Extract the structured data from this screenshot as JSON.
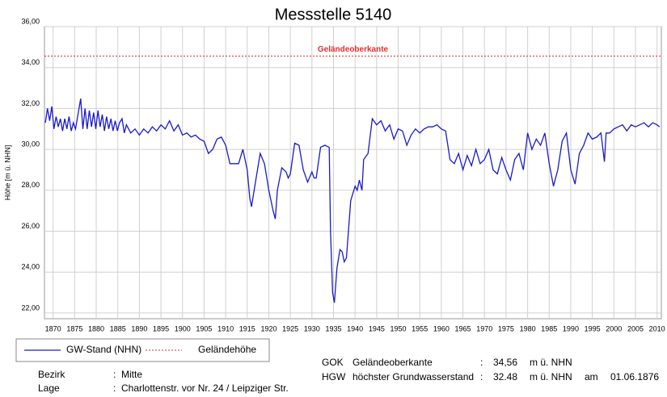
{
  "chart_data": {
    "type": "line",
    "title": "Messstelle 5140",
    "y_label": "Höhe [m ü. NHN]",
    "xlim": [
      1868,
      2011
    ],
    "ylim": [
      21.72,
      36
    ],
    "xticks": [
      1870,
      1875,
      1880,
      1885,
      1890,
      1895,
      1900,
      1905,
      1910,
      1915,
      1920,
      1925,
      1930,
      1935,
      1940,
      1945,
      1950,
      1955,
      1960,
      1965,
      1970,
      1975,
      1980,
      1985,
      1990,
      1995,
      2000,
      2005,
      2010
    ],
    "yticks": [
      {
        "value": 22,
        "label": "22,00"
      },
      {
        "value": 24,
        "label": "24,00"
      },
      {
        "value": 26,
        "label": "26,00"
      },
      {
        "value": 28,
        "label": "28,00"
      },
      {
        "value": 30,
        "label": "30,00"
      },
      {
        "value": 32,
        "label": "32,00"
      },
      {
        "value": 34,
        "label": "34,00"
      },
      {
        "value": 36,
        "label": "36,00"
      }
    ],
    "grid": true,
    "series": [
      {
        "name": "GW-Stand (NHN)",
        "color": "#1a1acc",
        "x": [
          1868.2,
          1868.7,
          1869.2,
          1869.7,
          1870.2,
          1870.7,
          1871.2,
          1871.7,
          1872.2,
          1872.7,
          1873.2,
          1873.7,
          1874.2,
          1874.7,
          1875.2,
          1876.4,
          1876.9,
          1877.4,
          1877.9,
          1878.4,
          1878.9,
          1879.4,
          1879.9,
          1880.4,
          1880.9,
          1881.4,
          1881.9,
          1882.4,
          1882.9,
          1883.4,
          1883.9,
          1884.4,
          1884.9,
          1885.4,
          1886,
          1886.5,
          1887,
          1888,
          1889,
          1890,
          1891,
          1892,
          1893,
          1894,
          1895,
          1896,
          1897,
          1898,
          1899,
          1900,
          1901,
          1902,
          1903,
          1904,
          1905,
          1906,
          1907,
          1908,
          1909,
          1910,
          1911,
          1912,
          1913,
          1914,
          1915,
          1915.6,
          1916,
          1917,
          1918,
          1919,
          1920,
          1921,
          1921.5,
          1922,
          1923,
          1924,
          1924.5,
          1925,
          1926,
          1927,
          1928,
          1929,
          1930,
          1930.5,
          1931,
          1932,
          1933,
          1934,
          1934.3,
          1934.8,
          1935.2,
          1935.8,
          1936.5,
          1937,
          1937.5,
          1938,
          1939,
          1940,
          1940.5,
          1941,
          1941.6,
          1942,
          1943,
          1944,
          1945,
          1946,
          1947,
          1948,
          1949,
          1950,
          1951,
          1952,
          1953,
          1954,
          1955,
          1956,
          1957,
          1958,
          1959,
          1960,
          1961,
          1962,
          1963,
          1964,
          1965,
          1966,
          1967,
          1968,
          1969,
          1970,
          1971,
          1972,
          1973,
          1974,
          1975,
          1976,
          1977,
          1978,
          1979,
          1980,
          1981,
          1982,
          1983,
          1984,
          1985,
          1986,
          1987,
          1988,
          1989,
          1990,
          1991,
          1992,
          1993,
          1994,
          1995,
          1996,
          1997,
          1997.8,
          1998.2,
          1999,
          2000,
          2001,
          2002,
          2003,
          2004,
          2005,
          2006,
          2007,
          2008,
          2009,
          2010,
          2010.6
        ],
        "values": [
          31.3,
          32.0,
          31.4,
          32.1,
          31.0,
          31.6,
          31.1,
          31.5,
          30.9,
          31.5,
          31.0,
          31.6,
          30.9,
          31.3,
          31.0,
          32.48,
          31.0,
          32.0,
          31.0,
          31.9,
          31.1,
          31.8,
          31.0,
          31.9,
          31.1,
          31.7,
          30.9,
          31.6,
          31.0,
          31.5,
          30.9,
          31.4,
          30.9,
          31.3,
          31.5,
          30.8,
          31.2,
          30.8,
          31.0,
          30.7,
          31.0,
          30.8,
          31.1,
          30.9,
          31.2,
          31.0,
          31.4,
          30.9,
          31.2,
          30.7,
          30.8,
          30.6,
          30.7,
          30.5,
          30.4,
          29.8,
          30.0,
          30.5,
          30.6,
          30.2,
          29.3,
          29.3,
          29.3,
          30.0,
          29.0,
          27.6,
          27.2,
          28.5,
          29.8,
          29.3,
          28.0,
          27.0,
          26.6,
          28.0,
          29.1,
          28.9,
          28.6,
          28.8,
          30.3,
          30.2,
          29.0,
          28.4,
          28.9,
          28.6,
          28.6,
          30.1,
          30.2,
          30.1,
          26.0,
          23.0,
          22.5,
          24.2,
          25.1,
          25.0,
          24.5,
          24.7,
          27.5,
          28.2,
          28.0,
          28.5,
          28.0,
          29.5,
          29.8,
          31.5,
          31.2,
          31.4,
          30.9,
          31.2,
          30.5,
          31.0,
          30.9,
          30.2,
          30.7,
          31.0,
          30.8,
          31.0,
          31.1,
          31.1,
          31.2,
          31.0,
          30.9,
          29.5,
          29.3,
          29.8,
          29.0,
          29.7,
          29.2,
          30.0,
          29.3,
          29.5,
          30.0,
          29.0,
          28.8,
          29.6,
          29.0,
          28.5,
          29.5,
          29.8,
          29.0,
          30.8,
          30.0,
          30.5,
          30.2,
          30.8,
          29.3,
          28.2,
          29.0,
          30.4,
          30.8,
          29.0,
          28.3,
          29.8,
          30.2,
          30.8,
          30.5,
          30.6,
          30.8,
          29.4,
          30.8,
          30.8,
          31.0,
          31.1,
          31.2,
          30.9,
          31.2,
          31.1,
          31.2,
          31.3,
          31.1,
          31.3,
          31.2,
          31.1
        ]
      }
    ],
    "reference_lines": [
      {
        "name": "Geländehöhe",
        "value": 34.56,
        "color": "#e03030",
        "label": "Geländeoberkante"
      }
    ]
  },
  "info": {
    "separator": ":",
    "left": [
      {
        "label": "Bezirk",
        "value": "Mitte"
      },
      {
        "label": "Lage",
        "value": "Charlottenstr. vor Nr. 24 / Leipziger Str."
      }
    ],
    "right": [
      {
        "code": "GOK",
        "label": "Geländeoberkante",
        "value": "34,56",
        "unit": "m ü. NHN"
      },
      {
        "code": "HGW",
        "label": "höchster Grundwasserstand",
        "value": "32.48",
        "unit": "m ü. NHN",
        "date_label": "am",
        "date": "01.06.1876"
      }
    ]
  }
}
